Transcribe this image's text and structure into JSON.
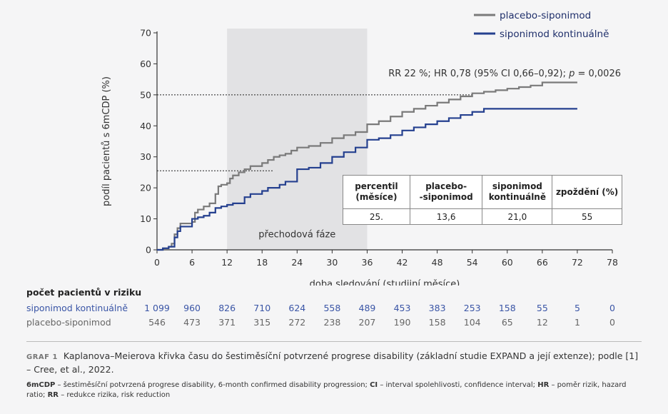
{
  "chart_data": {
    "type": "line",
    "step": true,
    "xlabel": "doba sledování (studijní měsíce)",
    "ylabel": "podíl pacientů s 6mCDP (%)",
    "x_ticks": [
      0,
      6,
      12,
      18,
      24,
      30,
      36,
      42,
      48,
      54,
      60,
      66,
      72,
      78
    ],
    "y_ticks": [
      0,
      10,
      20,
      30,
      40,
      50,
      60,
      70
    ],
    "xlim": [
      0,
      78
    ],
    "ylim": [
      0,
      70
    ],
    "grid": false,
    "legend_position": "top-right",
    "shaded_region": {
      "x_start": 12,
      "x_end": 36,
      "label": "přechodová fáze"
    },
    "reference_lines": [
      {
        "y": 50,
        "x_end": 54
      },
      {
        "y": 25.5,
        "x_end": 20
      }
    ],
    "annotation": {
      "before": "RR 22 %; HR 0,78 (95% CI 0,66–0,92); ",
      "italic": "p",
      "after": " = 0,0026"
    },
    "series": [
      {
        "name": "placebo-siponimod",
        "color": "#7a7a7a",
        "x": [
          0,
          1,
          2,
          2.5,
          3,
          3.5,
          4,
          6,
          6.5,
          7,
          8,
          9,
          10,
          10.5,
          11,
          12,
          12.5,
          13,
          14,
          15,
          16,
          18,
          19,
          20,
          21,
          22,
          23,
          24,
          26,
          28,
          30,
          32,
          34,
          36,
          38,
          40,
          42,
          44,
          46,
          48,
          50,
          52,
          54,
          56,
          58,
          60,
          62,
          64,
          66,
          72
        ],
        "y": [
          0,
          0.5,
          1,
          2,
          5,
          7,
          8.5,
          9,
          12,
          13,
          14,
          15,
          18,
          20.5,
          21,
          21.5,
          23,
          24,
          25,
          26,
          27,
          28,
          29,
          30,
          30.5,
          31,
          32,
          33,
          33.5,
          34.5,
          36,
          37,
          38,
          40.5,
          41.5,
          43,
          44.5,
          45.5,
          46.5,
          47.5,
          48.5,
          49.5,
          50.5,
          51,
          51.5,
          52,
          52.5,
          53,
          54,
          54
        ]
      },
      {
        "name": "siponimod kontinuálně",
        "color": "#25408f",
        "x": [
          0,
          1,
          2,
          3,
          3.5,
          4,
          6,
          7,
          8,
          9,
          10,
          11,
          12,
          13,
          15,
          16,
          18,
          19,
          21,
          22,
          24,
          26,
          28,
          30,
          32,
          34,
          36,
          38,
          40,
          42,
          44,
          46,
          48,
          50,
          52,
          54,
          56,
          58,
          60,
          66,
          72
        ],
        "y": [
          0,
          0.5,
          1,
          4,
          6,
          7.5,
          10,
          10.5,
          11,
          12,
          13.5,
          14,
          14.5,
          15,
          17,
          18,
          19,
          20,
          21,
          22,
          26,
          26.5,
          28,
          30,
          31.5,
          33,
          35.5,
          36,
          37,
          38.5,
          39.5,
          40.5,
          41.5,
          42.5,
          43.5,
          44.5,
          45.5,
          45.5,
          45.5,
          45.5,
          45.5
        ]
      }
    ]
  },
  "table": {
    "headers": [
      "percentil (měsíce)",
      "placebo--siponimod",
      "siponimod kontinuálně",
      "zpoždění (%)"
    ],
    "header_lines": [
      [
        "percentil",
        "(měsíce)"
      ],
      [
        "placebo-",
        "-siponimod"
      ],
      [
        "siponimod",
        "kontinuálně"
      ],
      [
        "zpoždění (%)",
        ""
      ]
    ],
    "row": [
      "25.",
      "13,6",
      "21,0",
      "55"
    ]
  },
  "risk": {
    "title": "počet pacientů v riziku",
    "rows": [
      {
        "label": "siponimod kontinuálně",
        "values": [
          "1 099",
          "960",
          "826",
          "710",
          "624",
          "558",
          "489",
          "453",
          "383",
          "253",
          "158",
          "55",
          "5",
          "0"
        ]
      },
      {
        "label": "placebo-siponimod",
        "values": [
          "546",
          "473",
          "371",
          "315",
          "272",
          "238",
          "207",
          "190",
          "158",
          "104",
          "65",
          "12",
          "1",
          "0"
        ]
      }
    ]
  },
  "caption": {
    "label": "GRAF 1",
    "text": "Kaplanova–Meierova křivka času do šestiměsíční potvrzené progrese disability (základní studie EXPAND a její extenze); podle [1] – Cree, et al., 2022."
  },
  "footnote": [
    {
      "abbr": "6mCDP",
      "text": " – šestiměsíční potvrzená progrese disability, 6-month confirmed disability progression; "
    },
    {
      "abbr": "CI",
      "text": " – interval spolehlivosti, confidence interval; "
    },
    {
      "abbr": "HR",
      "text": " – poměr rizik, hazard ratio; "
    },
    {
      "abbr": "RR",
      "text": " – redukce rizika, risk reduction"
    }
  ]
}
